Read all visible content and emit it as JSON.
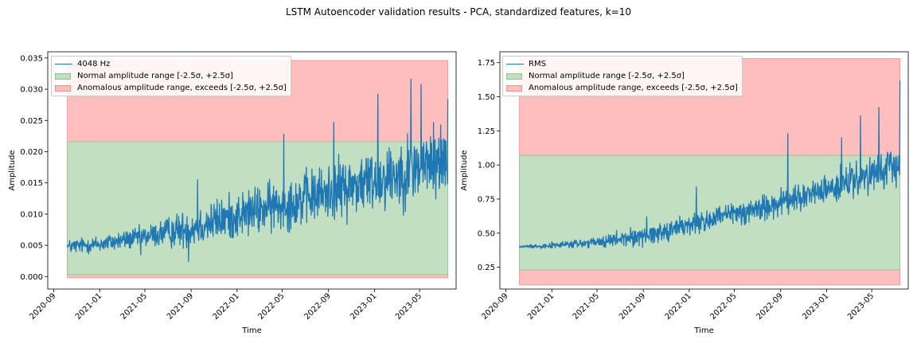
{
  "figure": {
    "title": "LSTM Autoencoder validation results - PCA, standardized features, k=10"
  },
  "colors": {
    "line": "#1f77b4",
    "normal_fill": "#c2dfc1",
    "normal_edge": "#8fc28d",
    "anomal_fill": "#ffbebe",
    "anomal_edge": "#f28f8f"
  },
  "chart_data": [
    {
      "type": "line",
      "title": "",
      "xlabel": "Time",
      "ylabel": "Amplitude",
      "x_range": [
        "2020-10-07",
        "2023-07-15"
      ],
      "ylim": [
        -0.002,
        0.036
      ],
      "yticks": [
        0.0,
        0.005,
        0.01,
        0.015,
        0.02,
        0.025,
        0.03,
        0.035
      ],
      "ytick_labels": [
        "0.000",
        "0.005",
        "0.010",
        "0.015",
        "0.020",
        "0.025",
        "0.030",
        "0.035"
      ],
      "xticks": [
        "2020-09-01",
        "2021-01-01",
        "2021-05-01",
        "2021-09-01",
        "2022-01-01",
        "2022-05-01",
        "2022-09-01",
        "2023-01-01",
        "2023-05-01"
      ],
      "xtick_labels": [
        "2020-09",
        "2021-01",
        "2021-05",
        "2021-09",
        "2022-01",
        "2022-05",
        "2022-09",
        "2023-01",
        "2023-05"
      ],
      "normal_range": [
        0.0003,
        0.0216
      ],
      "anomalous_range": [
        -0.0002,
        0.0346
      ],
      "series": [
        {
          "name": "4048 Hz",
          "trend": [
            [
              "2020-10-07",
              0.0048
            ],
            [
              "2021-01-01",
              0.0052
            ],
            [
              "2021-05-01",
              0.0064
            ],
            [
              "2021-09-01",
              0.0078
            ],
            [
              "2022-01-01",
              0.0098
            ],
            [
              "2022-05-01",
              0.0115
            ],
            [
              "2022-09-01",
              0.0135
            ],
            [
              "2023-01-01",
              0.0155
            ],
            [
              "2023-05-01",
              0.0175
            ],
            [
              "2023-07-15",
              0.019
            ]
          ],
          "noise": [
            [
              "2020-10-07",
              0.0008
            ],
            [
              "2021-05-01",
              0.0012
            ],
            [
              "2021-09-01",
              0.0022
            ],
            [
              "2022-09-01",
              0.0032
            ],
            [
              "2023-07-15",
              0.0042
            ]
          ],
          "spikes": [
            [
              "2020-10-07",
              0.0046
            ],
            [
              "2021-04-20",
              0.0035
            ],
            [
              "2021-08-25",
              0.0024
            ],
            [
              "2021-09-18",
              0.0155
            ],
            [
              "2022-05-05",
              0.0228
            ],
            [
              "2022-09-15",
              0.0247
            ],
            [
              "2023-01-10",
              0.0292
            ],
            [
              "2023-04-08",
              0.0316
            ],
            [
              "2023-05-05",
              0.0308
            ],
            [
              "2023-07-15",
              0.0284
            ]
          ]
        }
      ],
      "legend": [
        "4048 Hz",
        "Normal amplitude range [-2.5σ, +2.5σ]",
        "Anomalous amplitude range, exceeds [-2.5σ, +2.5σ]"
      ],
      "legend_loc": "upper left"
    },
    {
      "type": "line",
      "title": "",
      "xlabel": "Time",
      "ylabel": "Amplitude",
      "x_range": [
        "2020-10-07",
        "2023-07-15"
      ],
      "ylim": [
        0.09,
        1.83
      ],
      "yticks": [
        0.25,
        0.5,
        0.75,
        1.0,
        1.25,
        1.5,
        1.75
      ],
      "ytick_labels": [
        "0.25",
        "0.50",
        "0.75",
        "1.00",
        "1.25",
        "1.50",
        "1.75"
      ],
      "xticks": [
        "2020-09-01",
        "2021-01-01",
        "2021-05-01",
        "2021-09-01",
        "2022-01-01",
        "2022-05-01",
        "2022-09-01",
        "2023-01-01",
        "2023-05-01"
      ],
      "xtick_labels": [
        "2020-09",
        "2021-01",
        "2021-05",
        "2021-09",
        "2022-01",
        "2022-05",
        "2022-09",
        "2023-01",
        "2023-05"
      ],
      "normal_range": [
        0.23,
        1.07
      ],
      "anomalous_range": [
        0.12,
        1.78
      ],
      "series": [
        {
          "name": "RMS",
          "trend": [
            [
              "2020-10-07",
              0.4
            ],
            [
              "2021-01-01",
              0.41
            ],
            [
              "2021-05-01",
              0.43
            ],
            [
              "2021-09-01",
              0.48
            ],
            [
              "2022-01-01",
              0.56
            ],
            [
              "2022-05-01",
              0.64
            ],
            [
              "2022-09-01",
              0.72
            ],
            [
              "2023-01-01",
              0.82
            ],
            [
              "2023-05-01",
              0.92
            ],
            [
              "2023-07-15",
              1.0
            ]
          ],
          "noise": [
            [
              "2020-10-07",
              0.005
            ],
            [
              "2021-01-01",
              0.015
            ],
            [
              "2021-05-01",
              0.03
            ],
            [
              "2021-09-01",
              0.05
            ],
            [
              "2022-09-01",
              0.07
            ],
            [
              "2023-07-15",
              0.09
            ]
          ],
          "spikes": [
            [
              "2021-09-10",
              0.62
            ],
            [
              "2022-01-20",
              0.84
            ],
            [
              "2022-09-20",
              1.23
            ],
            [
              "2023-02-10",
              1.2
            ],
            [
              "2023-04-01",
              1.36
            ],
            [
              "2023-05-20",
              1.42
            ],
            [
              "2023-07-15",
              1.62
            ]
          ]
        }
      ],
      "legend": [
        "RMS",
        "Normal amplitude range [-2.5σ, +2.5σ]",
        "Anomalous amplitude range, exceeds [-2.5σ, +2.5σ]"
      ],
      "legend_loc": "upper left"
    }
  ]
}
